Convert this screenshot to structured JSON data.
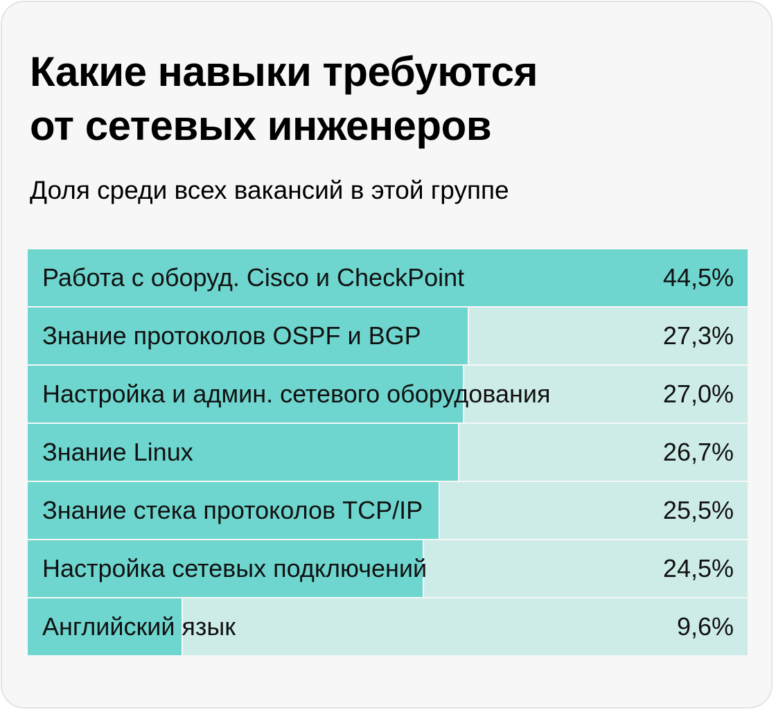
{
  "title_lines": [
    "Какие навыки требуются",
    "от сетевых инженеров"
  ],
  "subtitle": "Доля среди всех вакансий в этой группе",
  "colors": {
    "bar": "#6ed6cf",
    "track": "#cdece8",
    "background": "#f7f7f7"
  },
  "chart_data": {
    "type": "bar",
    "orientation": "horizontal",
    "title": "Какие навыки требуются от сетевых инженеров",
    "subtitle": "Доля среди всех вакансий в этой группе",
    "categories": [
      "Работа с оборуд. Cisco и CheckPoint",
      "Знание протоколов OSPF и BGP",
      "Настройка и админ. сетевого оборудования",
      "Знание Linux",
      "Знание стека протоколов TCP/IP",
      "Настройка сетевых подключений",
      "Английский язык"
    ],
    "values": [
      44.5,
      27.3,
      27.0,
      26.7,
      25.5,
      24.5,
      9.6
    ],
    "value_labels": [
      "44,5%",
      "27,3%",
      "27,0%",
      "26,7%",
      "25,5%",
      "24,5%",
      "9,6%"
    ],
    "unit": "%",
    "xlim": [
      0,
      44.5
    ],
    "grid": false,
    "legend": "none"
  }
}
